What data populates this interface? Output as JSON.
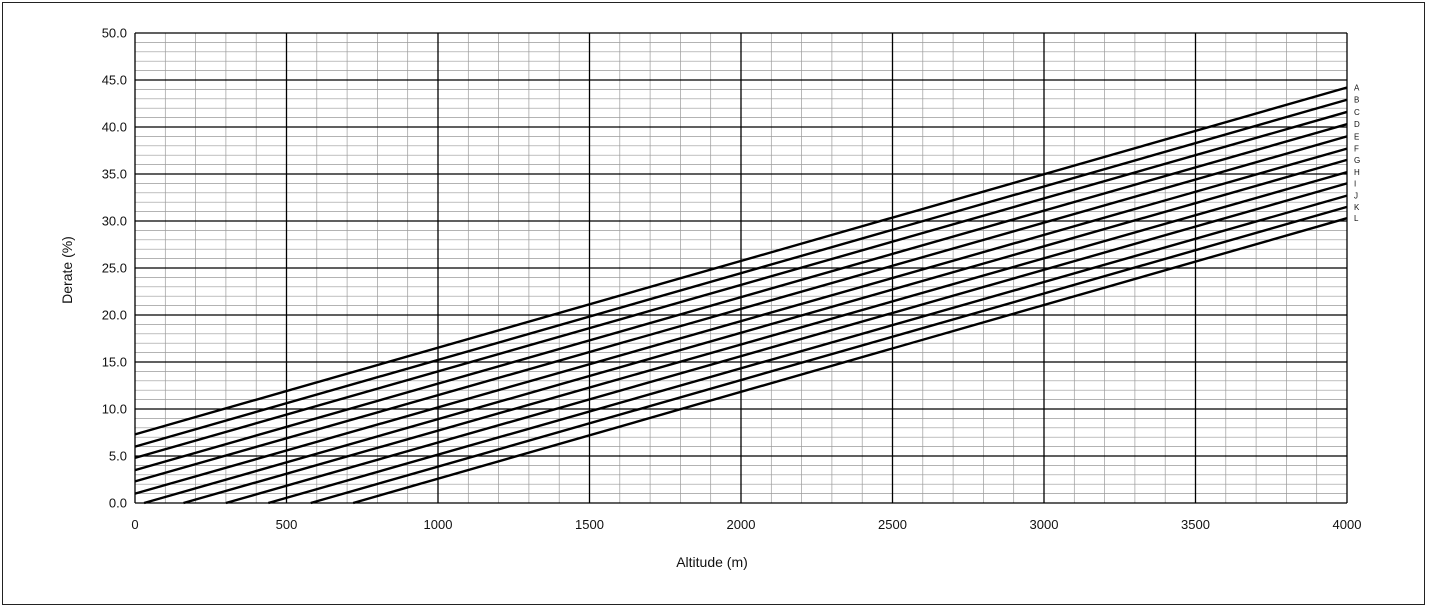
{
  "chart_data": {
    "type": "line",
    "title": "",
    "xlabel": "Altitude (m)",
    "ylabel": "Derate  (%)",
    "xlim": [
      0,
      4000
    ],
    "ylim": [
      0,
      50
    ],
    "x_ticks": [
      "0",
      "500",
      "1000",
      "1500",
      "2000",
      "2500",
      "3000",
      "3500",
      "4000"
    ],
    "y_ticks": [
      "0.0",
      "5.0",
      "10.0",
      "15.0",
      "20.0",
      "25.0",
      "30.0",
      "35.0",
      "40.0",
      "45.0",
      "50.0"
    ],
    "grid": true,
    "line_color": "#000000",
    "grid_major_color": "#000000",
    "grid_minor_color": "#9a9a9a",
    "series": [
      {
        "name": "A",
        "points": [
          [
            0,
            7.3
          ],
          [
            4000,
            44.2
          ]
        ]
      },
      {
        "name": "B",
        "points": [
          [
            0,
            6.0
          ],
          [
            4000,
            42.9
          ]
        ]
      },
      {
        "name": "C",
        "points": [
          [
            0,
            4.8
          ],
          [
            4000,
            41.6
          ]
        ]
      },
      {
        "name": "D",
        "points": [
          [
            0,
            3.5
          ],
          [
            4000,
            40.3
          ]
        ]
      },
      {
        "name": "E",
        "points": [
          [
            0,
            2.3
          ],
          [
            4000,
            39.0
          ]
        ]
      },
      {
        "name": "F",
        "points": [
          [
            0,
            1.0
          ],
          [
            4000,
            37.7
          ]
        ]
      },
      {
        "name": "G",
        "points": [
          [
            30,
            0.0
          ],
          [
            4000,
            36.5
          ]
        ]
      },
      {
        "name": "H",
        "points": [
          [
            160,
            0.0
          ],
          [
            4000,
            35.2
          ]
        ]
      },
      {
        "name": "I",
        "points": [
          [
            300,
            0.0
          ],
          [
            4000,
            34.0
          ]
        ]
      },
      {
        "name": "J",
        "points": [
          [
            440,
            0.0
          ],
          [
            4000,
            32.7
          ]
        ]
      },
      {
        "name": "K",
        "points": [
          [
            580,
            0.0
          ],
          [
            4000,
            31.5
          ]
        ]
      },
      {
        "name": "L",
        "points": [
          [
            720,
            0.0
          ],
          [
            4000,
            30.3
          ]
        ]
      }
    ]
  }
}
